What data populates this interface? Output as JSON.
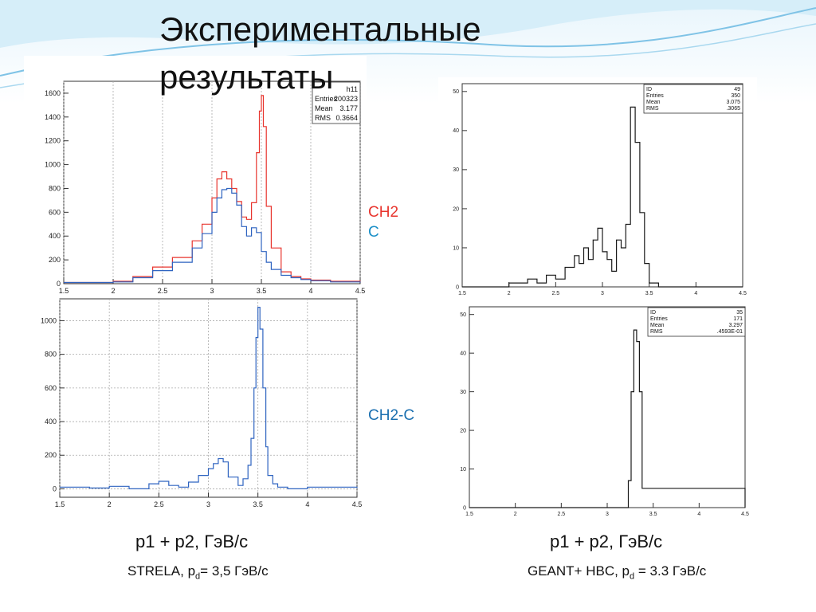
{
  "slide": {
    "title_line1": "Экспериментальные",
    "title_line2": "результаты"
  },
  "labels": {
    "legend_ch2": "CH2",
    "legend_c": "C",
    "legend_diff": "CH2-C",
    "left_xlabel": "p1 + p2, ГэВ/с",
    "right_xlabel": "p1 + p2, ГэВ/с",
    "left_note_prefix": "STRELA, p",
    "left_note_sub": "d",
    "left_note_suffix": "= 3,5 ГэВ/с",
    "right_note_prefix": "GEANT+ HBC, p",
    "right_note_sub": "d",
    "right_note_suffix": " = 3.3 ГэВ/с"
  },
  "colors": {
    "ch2": "#e8352e",
    "c": "#2e63c0",
    "hist": "#1a1a1a",
    "legend_c": "#1a8fc7",
    "legend_diff": "#1a6fb0",
    "wave": "#cfe9f7"
  },
  "chart_data": [
    {
      "id": "top-left",
      "type": "histogram",
      "xlim": [
        1.5,
        4.5
      ],
      "ylim": [
        0,
        1700
      ],
      "xticks": [
        "1.5",
        "2",
        "2.5",
        "3",
        "3.5",
        "4",
        "4.5"
      ],
      "yticks": [
        "0",
        "200",
        "400",
        "600",
        "800",
        "1000",
        "1200",
        "1400",
        "1600"
      ],
      "ytick_values": [
        0,
        200,
        400,
        600,
        800,
        1000,
        1200,
        1400,
        1600
      ],
      "grid": "vertical",
      "stats": {
        "title": "h11",
        "rows": [
          [
            "Entries",
            "200323"
          ],
          [
            "Mean",
            "3.177"
          ],
          [
            "RMS",
            "0.3664"
          ]
        ]
      },
      "series": [
        {
          "name": "CH2",
          "x": [
            1.5,
            2.0,
            2.2,
            2.4,
            2.6,
            2.8,
            2.9,
            3.0,
            3.05,
            3.1,
            3.15,
            3.2,
            3.25,
            3.3,
            3.35,
            3.4,
            3.45,
            3.48,
            3.5,
            3.52,
            3.55,
            3.6,
            3.7,
            3.8,
            3.9,
            4.0,
            4.2,
            4.5
          ],
          "y": [
            10,
            20,
            60,
            140,
            220,
            360,
            500,
            720,
            880,
            940,
            880,
            800,
            690,
            560,
            540,
            680,
            1100,
            1450,
            1580,
            1320,
            650,
            300,
            100,
            60,
            40,
            30,
            20,
            10
          ]
        },
        {
          "name": "C",
          "x": [
            1.5,
            2.0,
            2.2,
            2.4,
            2.6,
            2.8,
            2.9,
            3.0,
            3.05,
            3.1,
            3.15,
            3.2,
            3.25,
            3.3,
            3.35,
            3.4,
            3.45,
            3.5,
            3.55,
            3.6,
            3.7,
            3.8,
            3.9,
            4.0,
            4.2,
            4.5
          ],
          "y": [
            10,
            15,
            50,
            110,
            180,
            300,
            420,
            600,
            720,
            790,
            800,
            760,
            660,
            480,
            400,
            470,
            430,
            270,
            180,
            120,
            70,
            50,
            35,
            25,
            15,
            10
          ]
        }
      ]
    },
    {
      "id": "bottom-left",
      "type": "histogram",
      "xlim": [
        1.5,
        4.5
      ],
      "ylim": [
        -50,
        1130
      ],
      "xticks": [
        "1.5",
        "2",
        "2.5",
        "3",
        "3.5",
        "4",
        "4.5"
      ],
      "yticks": [
        "0",
        "200",
        "400",
        "600",
        "800",
        "1000"
      ],
      "ytick_values": [
        0,
        200,
        400,
        600,
        800,
        1000
      ],
      "grid": "both",
      "series": [
        {
          "name": "CH2-C",
          "x": [
            1.5,
            1.8,
            2.0,
            2.2,
            2.4,
            2.5,
            2.6,
            2.7,
            2.8,
            2.9,
            3.0,
            3.05,
            3.1,
            3.15,
            3.2,
            3.3,
            3.35,
            3.4,
            3.43,
            3.46,
            3.48,
            3.5,
            3.52,
            3.55,
            3.58,
            3.6,
            3.65,
            3.7,
            3.8,
            4.0,
            4.5
          ],
          "y": [
            10,
            5,
            15,
            0,
            30,
            45,
            20,
            10,
            40,
            80,
            120,
            150,
            180,
            160,
            70,
            20,
            60,
            140,
            300,
            600,
            900,
            1080,
            950,
            600,
            250,
            80,
            30,
            10,
            0,
            10,
            5
          ]
        }
      ]
    },
    {
      "id": "top-right",
      "type": "histogram",
      "xlim": [
        1.5,
        4.5
      ],
      "ylim": [
        0,
        52
      ],
      "xticks": [
        "1.5",
        "2",
        "2.5",
        "3",
        "3.5",
        "4",
        "4.5"
      ],
      "yticks": [
        "0",
        "10",
        "20",
        "30",
        "40",
        "50"
      ],
      "ytick_values": [
        0,
        10,
        20,
        30,
        40,
        50
      ],
      "grid": "none",
      "stats": {
        "rows": [
          [
            "ID",
            "49"
          ],
          [
            "Entries",
            "350"
          ],
          [
            "Mean",
            "3.075"
          ],
          [
            "RMS",
            ".3065"
          ]
        ]
      },
      "series": [
        {
          "name": "",
          "x": [
            1.5,
            2.0,
            2.2,
            2.3,
            2.4,
            2.5,
            2.6,
            2.7,
            2.75,
            2.8,
            2.85,
            2.9,
            2.95,
            3.0,
            3.05,
            3.1,
            3.15,
            3.2,
            3.25,
            3.3,
            3.35,
            3.4,
            3.45,
            3.5,
            3.6,
            4.5
          ],
          "y": [
            0,
            1,
            2,
            1,
            3,
            2,
            5,
            8,
            6,
            10,
            7,
            12,
            15,
            9,
            7,
            4,
            12,
            10,
            16,
            46,
            37,
            19,
            6,
            1,
            0,
            0
          ]
        }
      ]
    },
    {
      "id": "bottom-right",
      "type": "histogram",
      "xlim": [
        1.5,
        4.5
      ],
      "ylim": [
        0,
        52
      ],
      "xticks": [
        "1.5",
        "2",
        "2.5",
        "3",
        "3.5",
        "4",
        "4.5"
      ],
      "yticks": [
        "0",
        "10",
        "20",
        "30",
        "40",
        "50"
      ],
      "ytick_values": [
        0,
        10,
        20,
        30,
        40,
        50
      ],
      "grid": "none",
      "stats": {
        "rows": [
          [
            "ID",
            "35"
          ],
          [
            "Entries",
            "171"
          ],
          [
            "Mean",
            "3.297"
          ],
          [
            "RMS",
            ".4593E-01"
          ]
        ]
      },
      "series": [
        {
          "name": "",
          "x": [
            1.5,
            3.2,
            3.23,
            3.26,
            3.29,
            3.32,
            3.35,
            3.38,
            4.5
          ],
          "y": [
            0,
            0,
            7,
            30,
            46,
            43,
            30,
            5,
            0
          ]
        }
      ]
    }
  ]
}
